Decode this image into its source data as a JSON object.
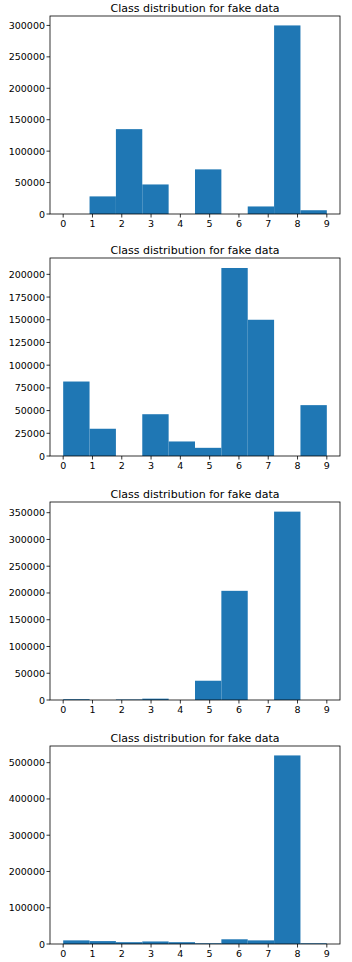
{
  "chart_data": [
    {
      "type": "histogram",
      "title": "Class distribution for fake data",
      "bins": [
        0,
        0.9,
        1.8,
        2.7,
        3.6,
        4.5,
        5.4,
        6.3,
        7.2,
        8.1,
        9
      ],
      "values": [
        0,
        28000,
        135000,
        47000,
        0,
        71000,
        0,
        12000,
        300000,
        6000
      ],
      "color": "#1f77b4",
      "xlim": [
        -0.45,
        9.45
      ],
      "ylim": [
        0,
        315000
      ],
      "xticks": [
        0,
        1,
        2,
        3,
        4,
        5,
        6,
        7,
        8,
        9
      ],
      "yticks": [
        0,
        50000,
        100000,
        150000,
        200000,
        250000,
        300000
      ]
    },
    {
      "type": "histogram",
      "title": "Class distribution for fake data",
      "bins": [
        0,
        0.9,
        1.8,
        2.7,
        3.6,
        4.5,
        5.4,
        6.3,
        7.2,
        8.1,
        9
      ],
      "values": [
        82000,
        30000,
        0,
        46000,
        16000,
        9000,
        207000,
        150000,
        0,
        56000
      ],
      "color": "#1f77b4",
      "xlim": [
        -0.45,
        9.45
      ],
      "ylim": [
        0,
        218000
      ],
      "xticks": [
        0,
        1,
        2,
        3,
        4,
        5,
        6,
        7,
        8,
        9
      ],
      "yticks": [
        0,
        25000,
        50000,
        75000,
        100000,
        125000,
        150000,
        175000,
        200000
      ]
    },
    {
      "type": "histogram",
      "title": "Class distribution for fake data",
      "bins": [
        0,
        0.9,
        1.8,
        2.7,
        3.6,
        4.5,
        5.4,
        6.3,
        7.2,
        8.1,
        9
      ],
      "values": [
        1500,
        0,
        1000,
        2500,
        0,
        36000,
        204000,
        0,
        352000,
        0
      ],
      "color": "#1f77b4",
      "xlim": [
        -0.45,
        9.45
      ],
      "ylim": [
        0,
        370000
      ],
      "xticks": [
        0,
        1,
        2,
        3,
        4,
        5,
        6,
        7,
        8,
        9
      ],
      "yticks": [
        0,
        50000,
        100000,
        150000,
        200000,
        250000,
        300000,
        350000
      ]
    },
    {
      "type": "histogram",
      "title": "Class distribution for fake data",
      "bins": [
        0,
        0.9,
        1.8,
        2.7,
        3.6,
        4.5,
        5.4,
        6.3,
        7.2,
        8.1,
        9
      ],
      "values": [
        10000,
        8000,
        5000,
        7000,
        5000,
        2000,
        13000,
        10000,
        520000,
        2000
      ],
      "color": "#1f77b4",
      "xlim": [
        -0.45,
        9.45
      ],
      "ylim": [
        0,
        546000
      ],
      "xticks": [
        0,
        1,
        2,
        3,
        4,
        5,
        6,
        7,
        8,
        9
      ],
      "yticks": [
        0,
        100000,
        200000,
        300000,
        400000,
        500000
      ]
    }
  ]
}
